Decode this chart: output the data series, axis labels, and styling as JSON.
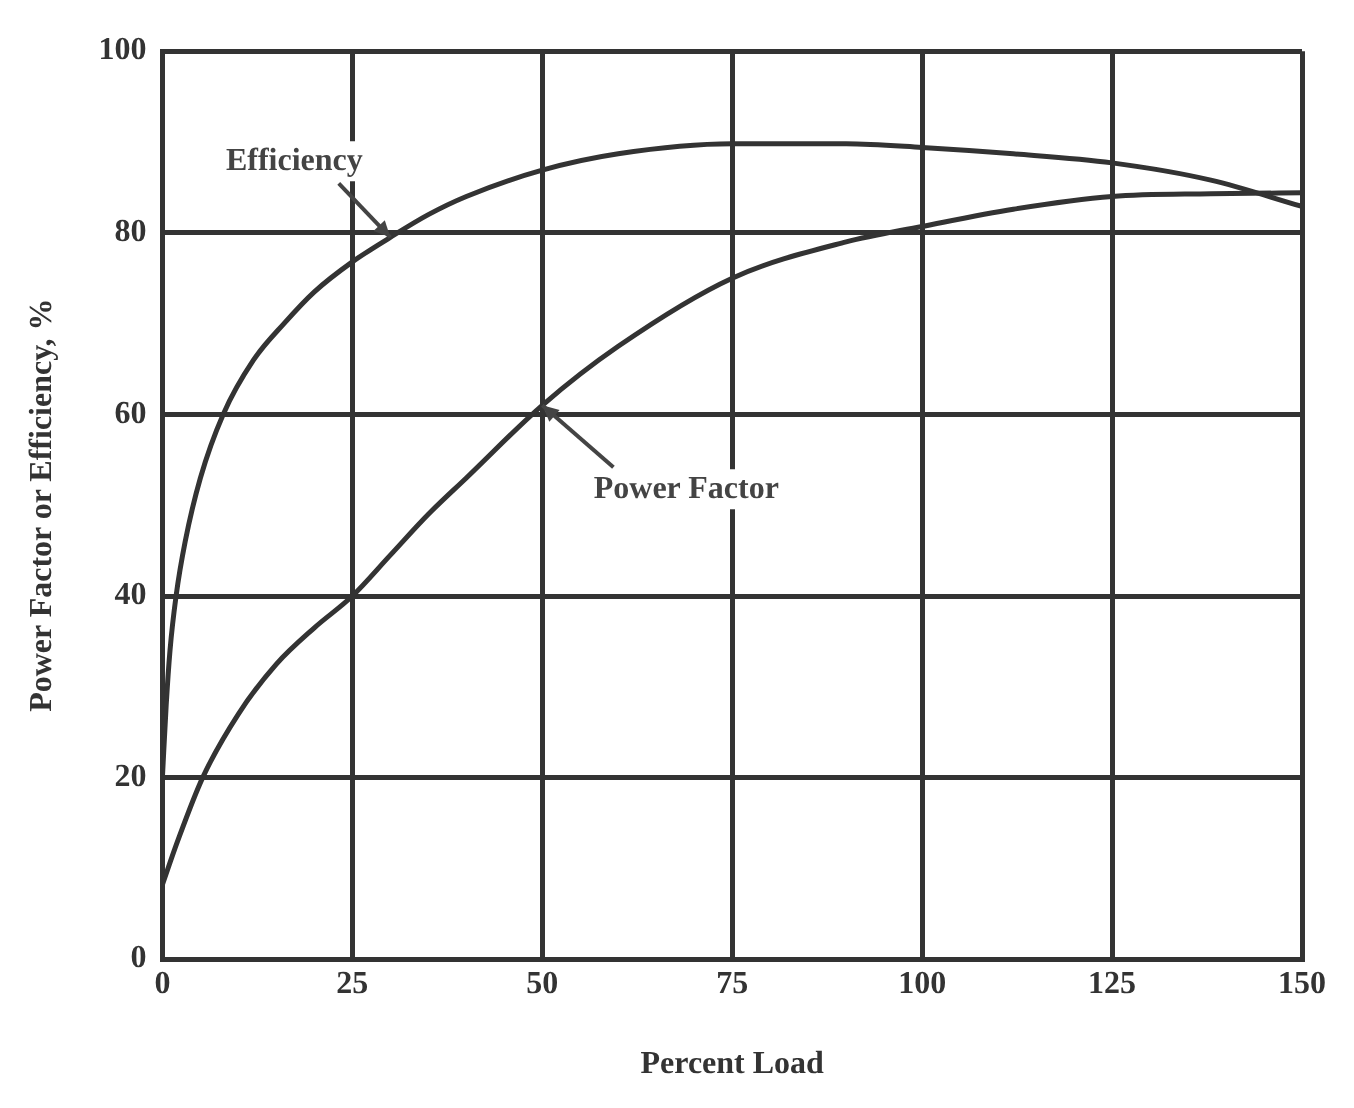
{
  "chart_data": {
    "type": "line",
    "xlabel": "Percent Load",
    "ylabel": "Power Factor or Efficiency, %",
    "xlim": [
      0,
      150
    ],
    "ylim": [
      0,
      100
    ],
    "xticks": [
      0,
      25,
      50,
      75,
      100,
      125,
      150
    ],
    "yticks": [
      0,
      20,
      40,
      60,
      80,
      100
    ],
    "grid": true,
    "marker": "none",
    "line_style": "solid",
    "series": [
      {
        "color": "#333333",
        "x": [
          0,
          0.5,
          1,
          1.8,
          3,
          5,
          8,
          12,
          16,
          20,
          25,
          30,
          35,
          40,
          50,
          60,
          75,
          90,
          100,
          112,
          125,
          138,
          150
        ],
        "values": [
          20,
          28,
          34,
          40,
          46,
          53,
          60,
          66,
          70,
          73.5,
          76.8,
          79.5,
          82,
          84,
          86.9,
          88.7,
          89.8,
          89.8,
          89.4,
          88.7,
          87.7,
          85.8,
          82.9
        ]
      },
      {
        "color": "#333333",
        "x": [
          0,
          2,
          5.3,
          10,
          15,
          20,
          25,
          30,
          35,
          40,
          50,
          60,
          75,
          90,
          100,
          112,
          125,
          138,
          150
        ],
        "values": [
          8.2,
          13,
          20,
          27,
          32.5,
          36.5,
          40,
          44.5,
          49,
          53,
          61,
          67.5,
          75,
          79,
          80.7,
          82.6,
          84,
          84.3,
          84.4
        ]
      }
    ],
    "annotations": [
      {
        "text": "Efficiency",
        "x": 30,
        "y": 79.5
      },
      {
        "text": "Power Factor",
        "x": 50,
        "y": 61
      }
    ]
  }
}
